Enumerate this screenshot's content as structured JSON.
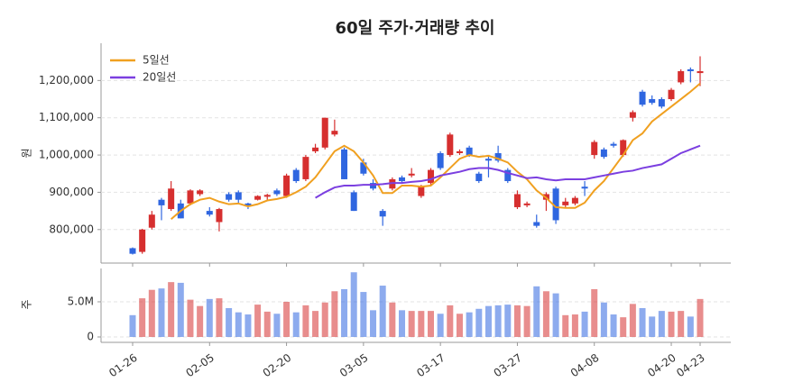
{
  "chart_data": [
    {
      "type": "candlestick",
      "title": "60일 주가·거래량 추이",
      "ylabel": "원",
      "categories": [
        "01-26",
        null,
        null,
        null,
        null,
        null,
        null,
        null,
        "02-05",
        null,
        null,
        null,
        null,
        null,
        null,
        null,
        "02-20",
        null,
        null,
        null,
        null,
        null,
        null,
        null,
        "03-05",
        null,
        null,
        null,
        null,
        null,
        null,
        null,
        "03-17",
        null,
        null,
        null,
        null,
        null,
        null,
        null,
        "03-27",
        null,
        null,
        null,
        null,
        null,
        null,
        null,
        "04-08",
        null,
        null,
        null,
        null,
        null,
        null,
        null,
        "04-20",
        null,
        null,
        "04-23"
      ],
      "open": [
        750000,
        740000,
        805000,
        880000,
        855000,
        870000,
        870000,
        895000,
        850000,
        820000,
        895000,
        900000,
        870000,
        880000,
        888000,
        905000,
        890000,
        960000,
        935000,
        1010000,
        1020000,
        1055000,
        1015000,
        900000,
        980000,
        925000,
        850000,
        910000,
        940000,
        945000,
        890000,
        925000,
        1005000,
        1000000,
        1005000,
        1020000,
        950000,
        990000,
        1005000,
        960000,
        860000,
        865000,
        820000,
        880000,
        910000,
        865000,
        870000,
        915000,
        1000000,
        1015000,
        1030000,
        1000000,
        1100000,
        1170000,
        1150000,
        1150000,
        1150000,
        1195000,
        1230000,
        1220000
      ],
      "high": [
        752000,
        802000,
        850000,
        885000,
        930000,
        880000,
        908000,
        908000,
        860000,
        858000,
        900000,
        905000,
        872000,
        892000,
        896000,
        910000,
        950000,
        965000,
        1000000,
        1030000,
        1100000,
        1095000,
        1020000,
        905000,
        990000,
        935000,
        855000,
        940000,
        945000,
        965000,
        920000,
        965000,
        1010000,
        1060000,
        1015000,
        1025000,
        955000,
        1000000,
        1025000,
        965000,
        905000,
        875000,
        840000,
        900000,
        915000,
        885000,
        890000,
        930000,
        1040000,
        1020000,
        1035000,
        1042000,
        1120000,
        1175000,
        1160000,
        1155000,
        1180000,
        1230000,
        1235000,
        1265000
      ],
      "low": [
        733000,
        735000,
        800000,
        825000,
        850000,
        830000,
        865000,
        890000,
        835000,
        795000,
        875000,
        870000,
        855000,
        878000,
        880000,
        890000,
        885000,
        925000,
        930000,
        1005000,
        1015000,
        1050000,
        935000,
        850000,
        945000,
        905000,
        810000,
        905000,
        925000,
        940000,
        885000,
        918000,
        960000,
        995000,
        1000000,
        995000,
        925000,
        940000,
        980000,
        925000,
        855000,
        860000,
        805000,
        850000,
        815000,
        860000,
        865000,
        890000,
        990000,
        990000,
        1020000,
        995000,
        1090000,
        1130000,
        1135000,
        1125000,
        1145000,
        1190000,
        1195000,
        1185000
      ],
      "close": [
        735000,
        800000,
        840000,
        865000,
        910000,
        830000,
        905000,
        905000,
        840000,
        855000,
        880000,
        880000,
        862000,
        890000,
        893000,
        895000,
        945000,
        930000,
        995000,
        1020000,
        1100000,
        1065000,
        935000,
        850000,
        950000,
        910000,
        835000,
        935000,
        930000,
        950000,
        915000,
        960000,
        965000,
        1055000,
        1010000,
        1000000,
        930000,
        985000,
        985000,
        930000,
        895000,
        870000,
        810000,
        895000,
        825000,
        875000,
        885000,
        910000,
        1035000,
        995000,
        1025000,
        1040000,
        1115000,
        1135000,
        1140000,
        1130000,
        1175000,
        1225000,
        1225000,
        1225000
      ],
      "up_color": "#d62f2f",
      "down_color": "#2f66e0",
      "lines": [
        {
          "name": "5일선",
          "color": "#f0a020",
          "values": [
            null,
            null,
            null,
            null,
            828000,
            850000,
            868000,
            880000,
            885000,
            875000,
            868000,
            870000,
            862000,
            868000,
            878000,
            882000,
            888000,
            900000,
            915000,
            940000,
            975000,
            1010000,
            1025000,
            1010000,
            980000,
            945000,
            898000,
            898000,
            918000,
            918000,
            915000,
            918000,
            940000,
            965000,
            990000,
            1000000,
            995000,
            998000,
            990000,
            980000,
            955000,
            935000,
            905000,
            885000,
            860000,
            858000,
            858000,
            872000,
            905000,
            930000,
            965000,
            1000000,
            1040000,
            1058000,
            1090000,
            1110000,
            1130000,
            1150000,
            1170000,
            1192000
          ]
        },
        {
          "name": "20일선",
          "color": "#7b3fe0",
          "values": [
            null,
            null,
            null,
            null,
            null,
            null,
            null,
            null,
            null,
            null,
            null,
            null,
            null,
            null,
            null,
            null,
            null,
            null,
            null,
            885000,
            900000,
            913000,
            918000,
            918000,
            920000,
            920000,
            922000,
            925000,
            925000,
            928000,
            930000,
            935000,
            945000,
            950000,
            955000,
            962000,
            965000,
            965000,
            960000,
            952000,
            945000,
            938000,
            940000,
            935000,
            932000,
            935000,
            935000,
            935000,
            940000,
            945000,
            950000,
            955000,
            958000,
            965000,
            970000,
            975000,
            990000,
            1005000,
            1015000,
            1025000
          ]
        }
      ],
      "ylim": [
        710000,
        1300000
      ],
      "yticks": [
        {
          "value": 800000,
          "label": "800,000"
        },
        {
          "value": 900000,
          "label": "900,000"
        },
        {
          "value": 1000000,
          "label": "1,000,000"
        },
        {
          "value": 1100000,
          "label": "1,100,000"
        },
        {
          "value": 1200000,
          "label": "1,200,000"
        }
      ],
      "grid": true,
      "legend": "upper left"
    },
    {
      "type": "bar",
      "ylabel": "주",
      "values": [
        3100000,
        5500000,
        6700000,
        6900000,
        7800000,
        7700000,
        5300000,
        4400000,
        5400000,
        5500000,
        4100000,
        3500000,
        3200000,
        4600000,
        3600000,
        3300000,
        5000000,
        3500000,
        4500000,
        3700000,
        4900000,
        6500000,
        6800000,
        9200000,
        6400000,
        3800000,
        7300000,
        4900000,
        3800000,
        3700000,
        3700000,
        3700000,
        3300000,
        4500000,
        3300000,
        3500000,
        4000000,
        4400000,
        4500000,
        4600000,
        4500000,
        4400000,
        7200000,
        6500000,
        6200000,
        3100000,
        3200000,
        3600000,
        6800000,
        4900000,
        3200000,
        2800000,
        4700000,
        4100000,
        2900000,
        3700000,
        3600000,
        3700000,
        2900000,
        5400000
      ],
      "ylim": [
        -770000,
        9740000
      ],
      "yticks": [
        0,
        {
          "value": 5000000,
          "label": "5.0M"
        }
      ],
      "grid": true
    }
  ]
}
